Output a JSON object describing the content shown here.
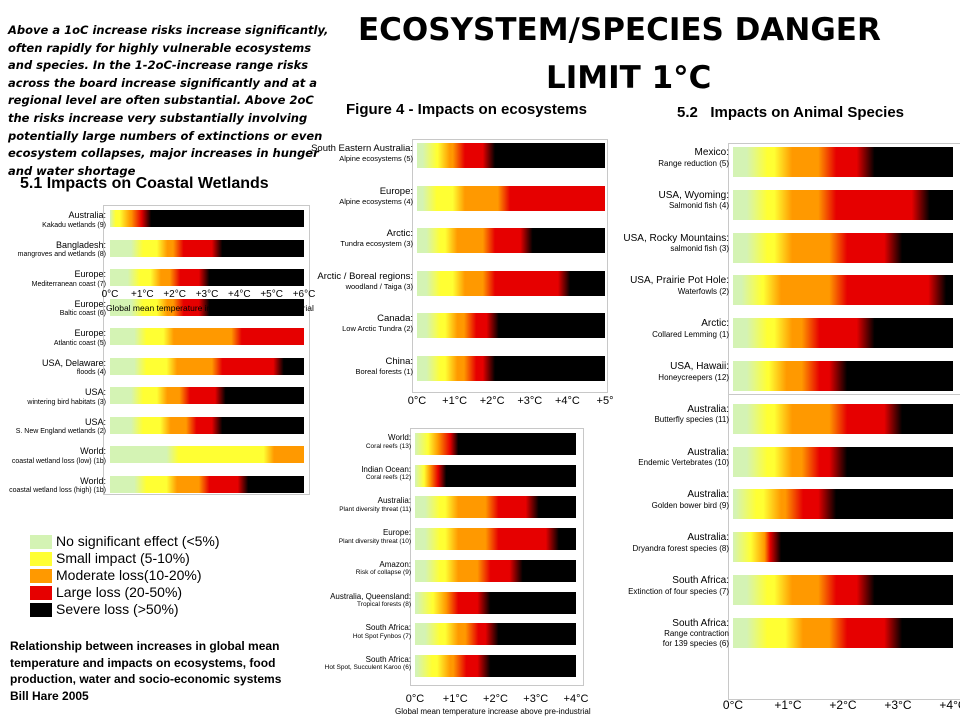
{
  "intro_text": "Above a 1oC increase risks increase significantly, often rapidly for highly vulnerable ecosystems and species. In the 1-2oC-increase range risks across the board increase significantly and at a regional level are often substantial. Above 2oC the risks increase very substantially involving potentially large numbers of extinctions or even ecosystem collapses, major increases in hunger and water shortage",
  "title": {
    "line1": "ECOSYSTEM/SPECIES  DANGER",
    "line2": "LIMIT 1°C"
  },
  "legend": [
    {
      "label": "No significant effect (<5%)",
      "color": "#d4f3b4"
    },
    {
      "label": "Small impact (5-10%)",
      "color": "#ffff33"
    },
    {
      "label": "Moderate loss(10-20%)",
      "color": "#ff9900"
    },
    {
      "label": "Large loss (20-50%)",
      "color": "#e60000"
    },
    {
      "label": "Severe loss (>50%)",
      "color": "#000000"
    }
  ],
  "caption": {
    "line1": "Relationship between increases in global mean",
    "line2": "temperature and impacts on ecosystems, food",
    "line3": "production, water and socio-economic systems",
    "line4": "Bill Hare 2005"
  },
  "chart_data": [
    {
      "type": "bar",
      "title": "5.1 Impacts on Coastal Wetlands",
      "xlabel": "Global mean temperature increase above pre-industrial",
      "xlim": [
        0,
        6
      ],
      "xticks": [
        "0°C",
        "+1°C",
        "+2°C",
        "+3°C",
        "+4°C",
        "+5°C",
        "+6°C"
      ],
      "categories": [
        {
          "name": "Australia:",
          "detail": "Kakadu wetlands (9)",
          "thresholds": [
            0.05,
            0.55,
            0.9,
            1.2
          ]
        },
        {
          "name": "Bangladesh:",
          "detail": "mangroves and wetlands (8)",
          "thresholds": [
            0.9,
            1.7,
            2.2,
            3.4
          ]
        },
        {
          "name": "Europe:",
          "detail": "Mediterranean coast (7)",
          "thresholds": [
            0.8,
            1.5,
            2.1,
            3.0
          ]
        },
        {
          "name": "Europe:",
          "detail": "Baltic coast (6)",
          "thresholds": [
            0.9,
            1.7,
            2.2,
            3.0
          ]
        },
        {
          "name": "Europe:",
          "detail": "Atlantic coast (5)",
          "thresholds": [
            1.0,
            1.9,
            4.0,
            6.5
          ]
        },
        {
          "name": "USA, Delaware:",
          "detail": "floods (4)",
          "thresholds": [
            1.0,
            2.0,
            3.4,
            5.3
          ]
        },
        {
          "name": "USA:",
          "detail": "wintering bird habitats (3)",
          "thresholds": [
            0.9,
            1.7,
            2.4,
            3.5
          ]
        },
        {
          "name": "USA:",
          "detail": "S. New England wetlands (2)",
          "thresholds": [
            0.9,
            1.8,
            2.6,
            3.4
          ]
        },
        {
          "name": "World:",
          "detail": "coastal wetland loss (low) (1b)",
          "thresholds": [
            2.0,
            5.0,
            6.5,
            7.0
          ]
        },
        {
          "name": "World:",
          "detail": "coastal wetland loss (high) (1b)",
          "thresholds": [
            1.0,
            2.0,
            3.0,
            4.2
          ]
        }
      ]
    },
    {
      "type": "bar",
      "title": "Figure 4 - Impacts on ecosystems",
      "xlim": [
        0,
        5
      ],
      "xticks": [
        "0°C",
        "+1°C",
        "+2°C",
        "+3°C",
        "+4°C",
        "+5°"
      ],
      "categories": [
        {
          "name": "South Eastern Australia:",
          "detail": "Alpine ecosystems (5)",
          "thresholds": [
            0.4,
            0.8,
            1.2,
            2.0
          ]
        },
        {
          "name": "Europe:",
          "detail": "Alpine ecosystems (4)",
          "thresholds": [
            0.4,
            1.2,
            2.4,
            6.0
          ]
        },
        {
          "name": "Arctic:",
          "detail": "Tundra ecosystem (3)",
          "thresholds": [
            0.5,
            1.0,
            2.0,
            3.0
          ]
        },
        {
          "name": "Arctic / Boreal regions:",
          "detail": "woodland / Taiga (3)",
          "thresholds": [
            0.5,
            1.2,
            2.0,
            4.0
          ]
        },
        {
          "name": "Canada:",
          "detail": "Low Arctic Tundra (2)",
          "thresholds": [
            0.5,
            1.0,
            1.5,
            2.1
          ]
        },
        {
          "name": "China:",
          "detail": "Boreal forests (1)",
          "thresholds": [
            0.5,
            1.0,
            1.5,
            2.0
          ]
        }
      ]
    },
    {
      "type": "bar",
      "xlabel": "Global mean temperature increase above pre-industrial",
      "xlim": [
        0,
        4
      ],
      "xticks": [
        "0°C",
        "+1°C",
        "+2°C",
        "+3°C",
        "+4°C"
      ],
      "categories": [
        {
          "name": "World:",
          "detail": "Coral reefs (13)",
          "thresholds": [
            0.2,
            0.5,
            0.8,
            1.0
          ]
        },
        {
          "name": "Indian Ocean:",
          "detail": "Coral reefs (12)",
          "thresholds": [
            0.1,
            0.3,
            0.5,
            0.7
          ]
        },
        {
          "name": "Australia:",
          "detail": "Plant diversity threat (11)",
          "thresholds": [
            0.5,
            1.0,
            2.0,
            3.0
          ]
        },
        {
          "name": "Europe:",
          "detail": "Plant diversity threat (10)",
          "thresholds": [
            0.5,
            1.0,
            2.0,
            3.5
          ]
        },
        {
          "name": "Amazon:",
          "detail": "Risk of collapse (9)",
          "thresholds": [
            0.5,
            1.0,
            1.8,
            2.6
          ]
        },
        {
          "name": "Australia, Queensland:",
          "detail": "Tropical forests (8)",
          "thresholds": [
            0.3,
            0.7,
            1.0,
            1.8
          ]
        },
        {
          "name": "South Africa:",
          "detail": "Hot Spot Fynbos (7)",
          "thresholds": [
            0.5,
            1.0,
            1.5,
            2.0
          ]
        },
        {
          "name": "South Africa:",
          "detail": "Hot Spot, Succulent Karoo (6)",
          "thresholds": [
            0.3,
            0.8,
            1.2,
            1.8
          ]
        }
      ]
    },
    {
      "type": "bar",
      "title": "5.2   Impacts on Animal Species",
      "xlim": [
        0,
        4
      ],
      "xticks": [
        "0°C",
        "+1°C",
        "+2°C",
        "+3°C",
        "+4°C"
      ],
      "categories": [
        {
          "name": "Mexico:",
          "detail": "Range reduction (5)",
          "thresholds": [
            0.5,
            1.0,
            1.8,
            2.5
          ]
        },
        {
          "name": "USA, Wyoming:",
          "detail": "Salmonid fish (4)",
          "thresholds": [
            0.5,
            1.0,
            1.8,
            3.5
          ]
        },
        {
          "name": "USA, Rocky Mountains:",
          "detail": "salmonid fish (3)",
          "thresholds": [
            0.5,
            1.0,
            2.0,
            3.0
          ]
        },
        {
          "name": "USA, Prairie Pot Hole:",
          "detail": "Waterfowls (2)",
          "thresholds": [
            0.4,
            0.8,
            2.0,
            3.8
          ]
        },
        {
          "name": "Arctic:",
          "detail": "Collared Lemming (1)",
          "thresholds": [
            0.5,
            1.0,
            1.5,
            2.5
          ]
        },
        {
          "name": "USA, Hawaii:",
          "detail": "Honeycreepers (12)",
          "thresholds": [
            0.5,
            0.9,
            1.5,
            2.0
          ]
        },
        {
          "name": "Australia:",
          "detail": "Butterfly species (11)",
          "thresholds": [
            0.5,
            1.0,
            2.0,
            3.0
          ]
        },
        {
          "name": "Australia:",
          "detail": "Endemic Vertebrates (10)",
          "thresholds": [
            0.5,
            1.0,
            1.5,
            2.0
          ]
        },
        {
          "name": "Australia:",
          "detail": "Golden bower bird (9)",
          "thresholds": [
            0.3,
            0.8,
            1.2,
            1.8
          ]
        },
        {
          "name": "Australia:",
          "detail": "Dryandra forest species (8)",
          "thresholds": [
            0.2,
            0.5,
            0.6,
            0.8
          ]
        },
        {
          "name": "South Africa:",
          "detail": "Extinction of four species (7)",
          "thresholds": [
            0.5,
            1.0,
            1.8,
            2.5
          ]
        },
        {
          "name": "South Africa:",
          "detail": "Range contraction",
          "detail2": "for 139 species (6)",
          "thresholds": [
            0.5,
            1.2,
            2.0,
            3.0
          ]
        }
      ]
    }
  ]
}
